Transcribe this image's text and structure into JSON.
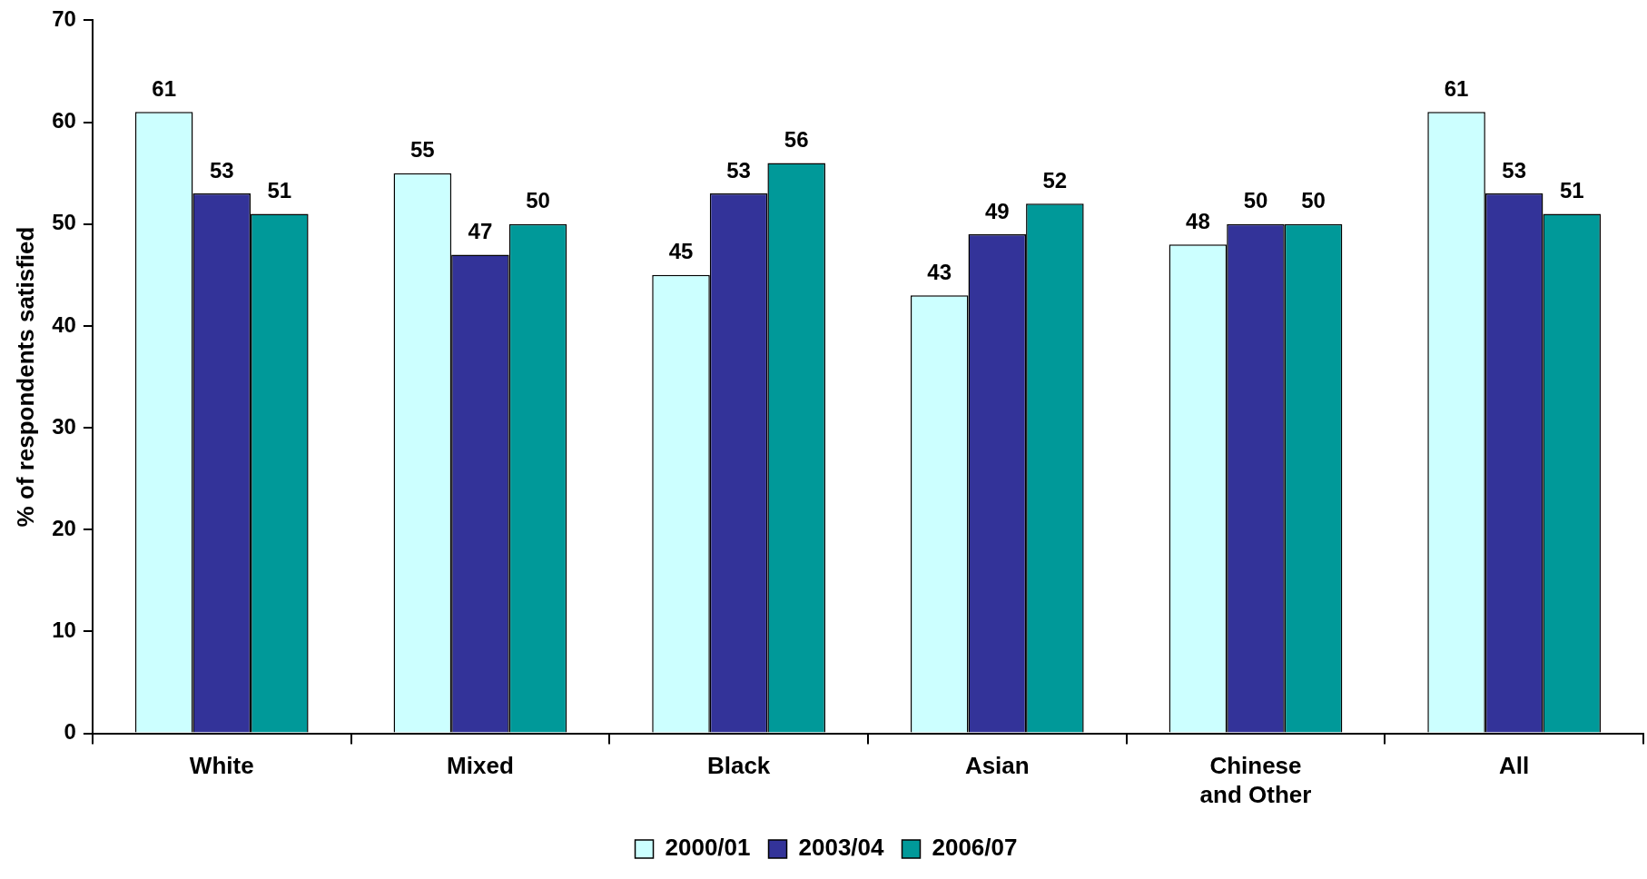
{
  "chart_data": {
    "type": "bar",
    "ylabel": "% of respondents satisfied",
    "categories": [
      "White",
      "Mixed",
      "Black",
      "Asian",
      "Chinese and Other",
      "All"
    ],
    "series": [
      {
        "name": "2000/01",
        "color": "#ccffff",
        "values": [
          61,
          55,
          45,
          43,
          48,
          61
        ]
      },
      {
        "name": "2003/04",
        "color": "#333399",
        "values": [
          53,
          47,
          53,
          49,
          50,
          53
        ]
      },
      {
        "name": "2006/07",
        "color": "#009999",
        "values": [
          51,
          50,
          56,
          52,
          50,
          51
        ]
      }
    ],
    "ylim": [
      0,
      70
    ],
    "yticks": [
      0,
      10,
      20,
      30,
      40,
      50,
      60,
      70
    ],
    "grid": false,
    "legend": "bottom",
    "data_labels": true
  }
}
